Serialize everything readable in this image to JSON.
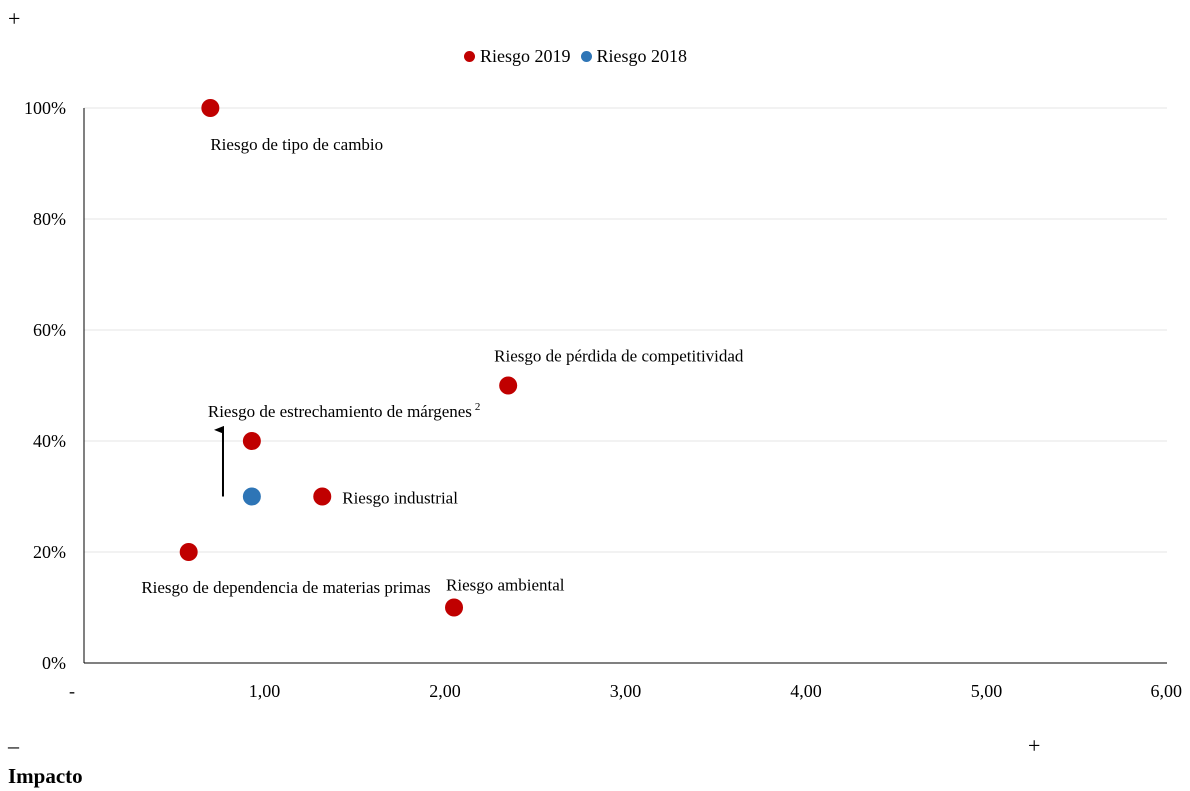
{
  "corners": {
    "top_left": "+",
    "bottom_left": "–",
    "bottom_right": "+"
  },
  "legend": [
    {
      "name": "Riesgo 2019",
      "color": "#c00000"
    },
    {
      "name": "Riesgo 2018",
      "color": "#2e75b6"
    }
  ],
  "x_title": "Impacto",
  "chart_data": {
    "type": "scatter",
    "xlim": [
      0,
      6
    ],
    "ylim": [
      0,
      1
    ],
    "x_ticks": [
      "-",
      "1,00",
      "2,00",
      "3,00",
      "4,00",
      "5,00",
      "6,00"
    ],
    "y_ticks": [
      "0%",
      "20%",
      "40%",
      "60%",
      "80%",
      "100%"
    ],
    "grid": "horizontal",
    "legend_position": "top-center",
    "series": [
      {
        "name": "Riesgo 2019",
        "color": "#c00000",
        "points": [
          {
            "x": 0.7,
            "y": 1.0,
            "label": "Riesgo de tipo de cambio"
          },
          {
            "x": 2.35,
            "y": 0.5,
            "label": "Riesgo de pérdida de competitividad"
          },
          {
            "x": 0.93,
            "y": 0.4,
            "label": "Riesgo de estrechamiento de márgenes",
            "sup": "2"
          },
          {
            "x": 1.32,
            "y": 0.3,
            "label": "Riesgo industrial"
          },
          {
            "x": 0.58,
            "y": 0.2,
            "label": "Riesgo de dependencia de materias primas"
          },
          {
            "x": 2.05,
            "y": 0.1,
            "label": "Riesgo ambiental"
          }
        ]
      },
      {
        "name": "Riesgo 2018",
        "color": "#2e75b6",
        "points": [
          {
            "x": 0.93,
            "y": 0.3
          }
        ]
      }
    ],
    "annotations": [
      {
        "type": "arrow",
        "from": [
          0.77,
          0.3
        ],
        "to": [
          0.77,
          0.42
        ]
      }
    ]
  }
}
